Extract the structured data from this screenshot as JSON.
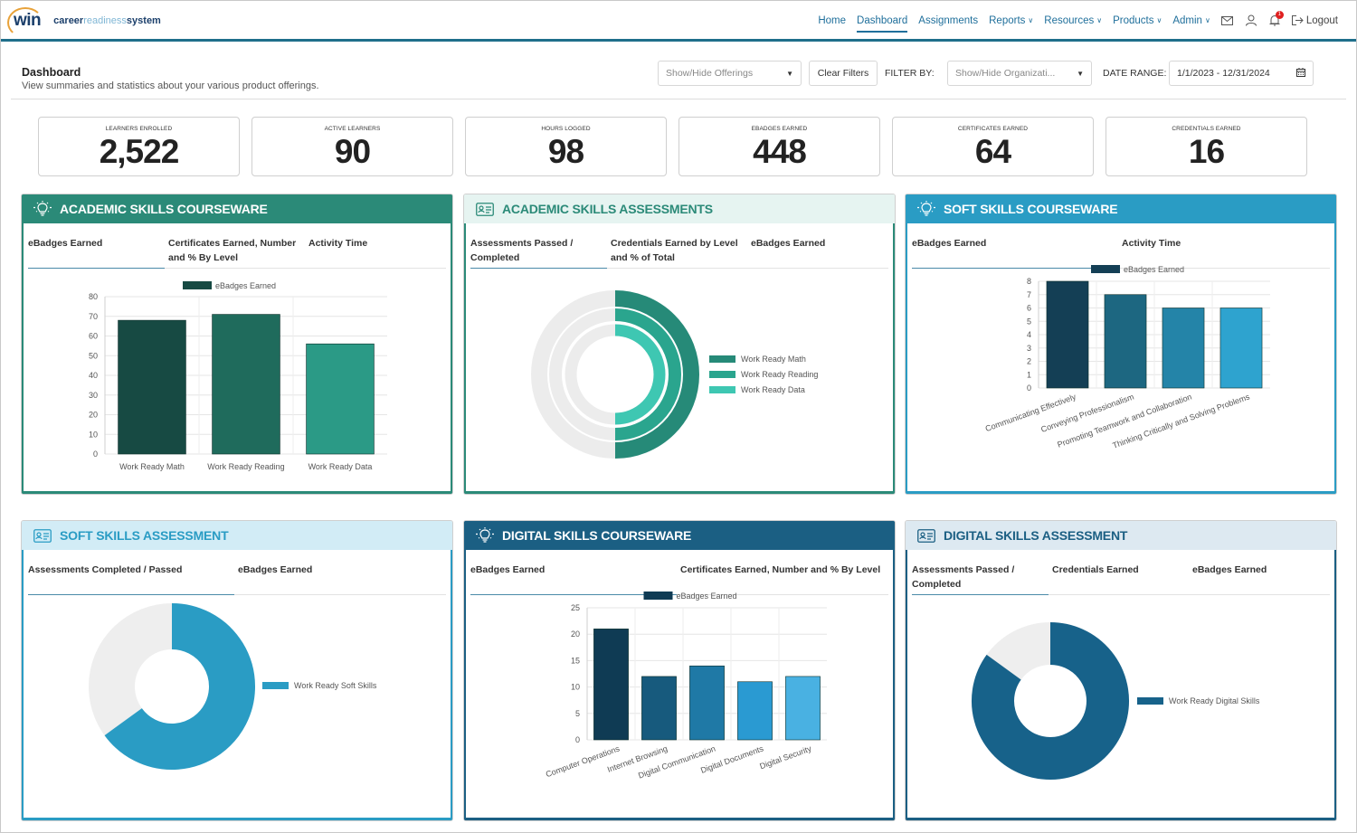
{
  "header": {
    "logo_mark": "win",
    "logo_text_a": "career",
    "logo_text_b": "readiness",
    "logo_text_c": "system",
    "nav": [
      {
        "label": "Home",
        "active": false,
        "dropdown": false
      },
      {
        "label": "Dashboard",
        "active": true,
        "dropdown": false
      },
      {
        "label": "Assignments",
        "active": false,
        "dropdown": false
      },
      {
        "label": "Reports",
        "active": false,
        "dropdown": true
      },
      {
        "label": "Resources",
        "active": false,
        "dropdown": true
      },
      {
        "label": "Products",
        "active": false,
        "dropdown": true
      },
      {
        "label": "Admin",
        "active": false,
        "dropdown": true
      }
    ],
    "notification_count": "1",
    "logout_label": "Logout",
    "icons": [
      "mail-icon",
      "user-icon",
      "bell-icon",
      "logout-icon"
    ]
  },
  "page": {
    "title": "Dashboard",
    "subtitle": "View summaries and statistics about your various product offerings.",
    "offerings_placeholder": "Show/Hide Offerings",
    "clear_filters": "Clear Filters",
    "filter_by_label": "FILTER BY:",
    "organization_placeholder": "Show/Hide Organizati...",
    "date_range_label": "DATE RANGE:",
    "date_range_value": "1/1/2023 - 12/31/2024"
  },
  "stats": [
    {
      "label": "LEARNERS ENROLLED",
      "value": "2,522"
    },
    {
      "label": "ACTIVE LEARNERS",
      "value": "90"
    },
    {
      "label": "HOURS LOGGED",
      "value": "98"
    },
    {
      "label": "EBADGES EARNED",
      "value": "448"
    },
    {
      "label": "CERTIFICATES EARNED",
      "value": "64"
    },
    {
      "label": "CREDENTIALS EARNED",
      "value": "16"
    }
  ],
  "colors": {
    "academic_dark": "#2b8a78",
    "academic_light": "#e6f4f1",
    "soft_dark": "#2a9cc4",
    "soft_light": "#d2ecf6",
    "digital_dark": "#1b5f83",
    "digital_light": "#dde9f1"
  },
  "panels": {
    "academic_courseware": {
      "title": "ACADEMIC SKILLS COURSEWARE",
      "icon": "lightbulb-icon",
      "tabs": [
        "eBadges Earned",
        "Certificates Earned, Number and % By Level",
        "Activity Time"
      ]
    },
    "academic_assessments": {
      "title": "ACADEMIC SKILLS ASSESSMENTS",
      "icon": "id-card-icon",
      "tabs": [
        "Assessments Passed / Completed",
        "Credentials Earned by Level and % of Total",
        "eBadges Earned"
      ]
    },
    "soft_courseware": {
      "title": "SOFT SKILLS COURSEWARE",
      "icon": "lightbulb-icon",
      "tabs": [
        "eBadges Earned",
        "Activity Time"
      ]
    },
    "soft_assessment": {
      "title": "SOFT SKILLS ASSESSMENT",
      "icon": "id-card-icon",
      "tabs": [
        "Assessments Completed / Passed",
        "eBadges Earned"
      ]
    },
    "digital_courseware": {
      "title": "DIGITAL SKILLS COURSEWARE",
      "icon": "lightbulb-icon",
      "tabs": [
        "eBadges Earned",
        "Certificates Earned, Number and % By Level"
      ]
    },
    "digital_assessment": {
      "title": "DIGITAL SKILLS ASSESSMENT",
      "icon": "id-card-icon",
      "tabs": [
        "Assessments Passed / Completed",
        "Credentials Earned",
        "eBadges Earned"
      ]
    }
  },
  "chart_data": [
    {
      "id": "academic_courseware",
      "type": "bar",
      "categories": [
        "Work Ready Math",
        "Work Ready Reading",
        "Work Ready Data"
      ],
      "series": [
        {
          "name": "eBadges Earned",
          "values": [
            68,
            71,
            56
          ]
        }
      ],
      "ylim": [
        0,
        80
      ],
      "yticks": [
        0,
        10,
        20,
        30,
        40,
        50,
        60,
        70,
        80
      ],
      "bar_colors": [
        "#174a43",
        "#1f6b5c",
        "#2b9a86"
      ],
      "grid": true,
      "legend": "top"
    },
    {
      "id": "academic_assessments",
      "type": "pie",
      "style": "concentric-rings",
      "series": [
        {
          "name": "Work Ready Math",
          "percent": 50,
          "color": "#268a78"
        },
        {
          "name": "Work Ready Reading",
          "percent": 50,
          "color": "#2aa58e"
        },
        {
          "name": "Work Ready Data",
          "percent": 50,
          "color": "#3ec7b2"
        }
      ],
      "legend": "right"
    },
    {
      "id": "soft_courseware",
      "type": "bar",
      "categories": [
        "Communicating Effectively",
        "Conveying Professionalism",
        "Promoting Teamwork and Collaboration",
        "Thinking Critically and Solving Problems"
      ],
      "series": [
        {
          "name": "eBadges Earned",
          "values": [
            8,
            7,
            6,
            6
          ]
        }
      ],
      "ylim": [
        0,
        8
      ],
      "yticks": [
        0,
        1,
        2,
        3,
        4,
        5,
        6,
        7,
        8
      ],
      "bar_colors": [
        "#143f55",
        "#1d6781",
        "#2484a8",
        "#2ea3cf"
      ],
      "grid": true,
      "legend": "top"
    },
    {
      "id": "soft_assessment",
      "type": "pie",
      "style": "donut",
      "series": [
        {
          "name": "Work Ready Soft Skills",
          "percent": 65,
          "color": "#2a9cc4"
        }
      ],
      "legend": "right"
    },
    {
      "id": "digital_courseware",
      "type": "bar",
      "categories": [
        "Computer Operations",
        "Internet Browsing",
        "Digital Communication",
        "Digital Documents",
        "Digital Security"
      ],
      "series": [
        {
          "name": "eBadges Earned",
          "values": [
            21,
            12,
            14,
            11,
            12
          ]
        }
      ],
      "ylim": [
        0,
        25
      ],
      "yticks": [
        0,
        5,
        10,
        15,
        20,
        25
      ],
      "bar_colors": [
        "#0f3b54",
        "#175a7d",
        "#1f79a6",
        "#2a9ad2",
        "#49b1e2"
      ],
      "grid": true,
      "legend": "top"
    },
    {
      "id": "digital_assessment",
      "type": "pie",
      "style": "donut",
      "series": [
        {
          "name": "Work Ready Digital Skills",
          "percent": 85,
          "color": "#17628a"
        }
      ],
      "legend": "right"
    }
  ]
}
